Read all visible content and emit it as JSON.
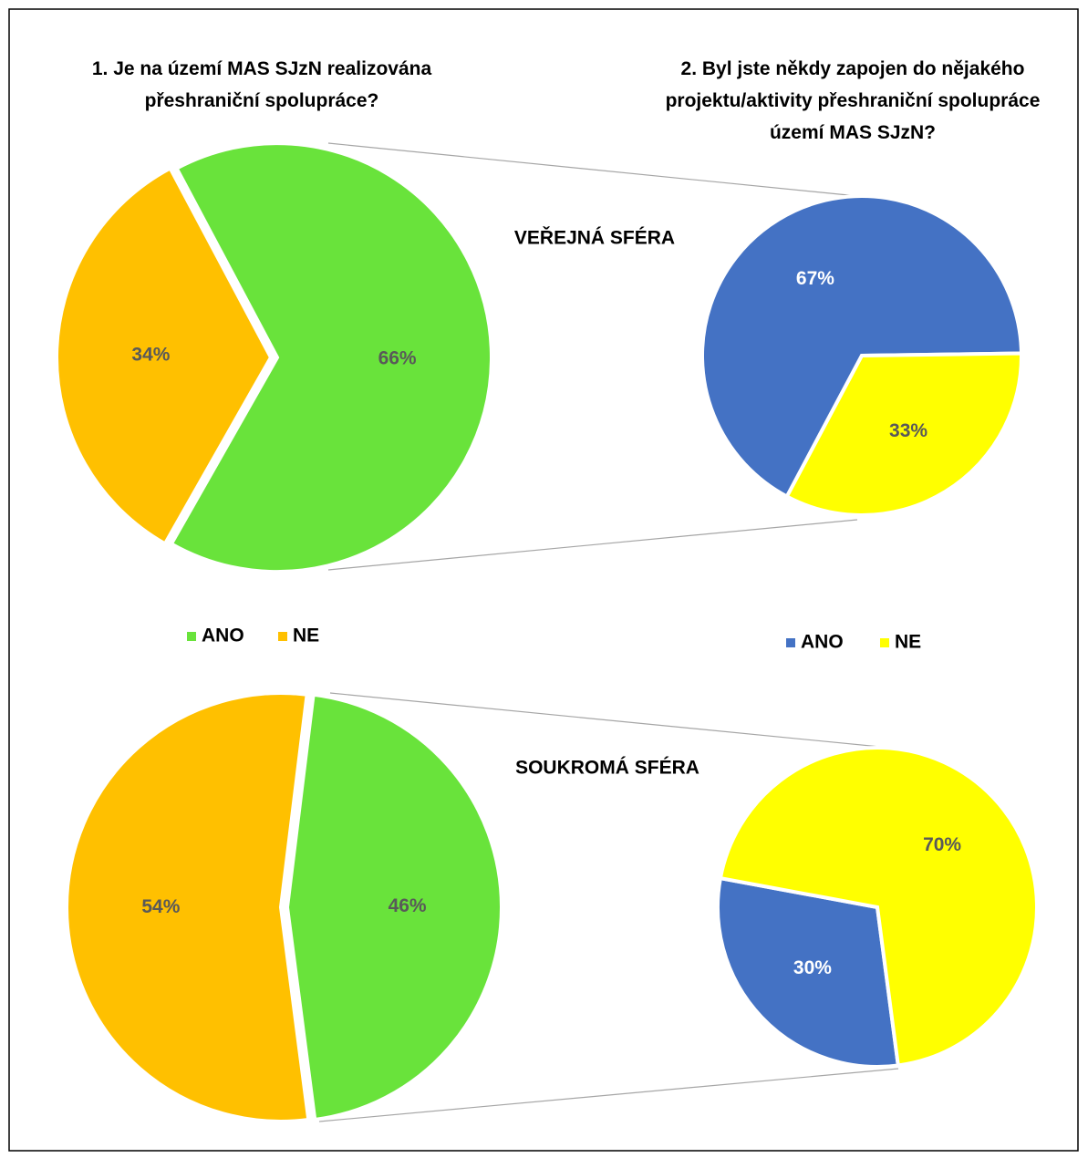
{
  "titles": [
    "1. Je na území MAS SJzN realizována přeshraniční spolupráce?",
    "2. Byl jste někdy zapojen do nějakého projektu/aktivity přeshraniční spolupráce území MAS SJzN?"
  ],
  "sections": [
    "VEŘEJNÁ SFÉRA",
    "SOUKROMÁ SFÉRA"
  ],
  "chart_data": [
    {
      "type": "pie",
      "categories": [
        "ANO",
        "NE"
      ],
      "values": [
        66,
        34
      ],
      "value_labels": [
        "66%",
        "34%"
      ],
      "colors": [
        "#69e33b",
        "#ffc000"
      ]
    },
    {
      "type": "pie",
      "categories": [
        "ANO",
        "NE"
      ],
      "values": [
        67,
        33
      ],
      "value_labels": [
        "67%",
        "33%"
      ],
      "colors": [
        "#4472c4",
        "#ffff00"
      ]
    },
    {
      "type": "pie",
      "values": [
        46,
        54
      ],
      "value_labels": [
        "46%",
        "54%"
      ],
      "colors": [
        "#69e33b",
        "#ffc000"
      ]
    },
    {
      "type": "pie",
      "values": [
        30,
        70
      ],
      "value_labels": [
        "30%",
        "70%"
      ],
      "colors": [
        "#4472c4",
        "#ffff00"
      ]
    }
  ]
}
